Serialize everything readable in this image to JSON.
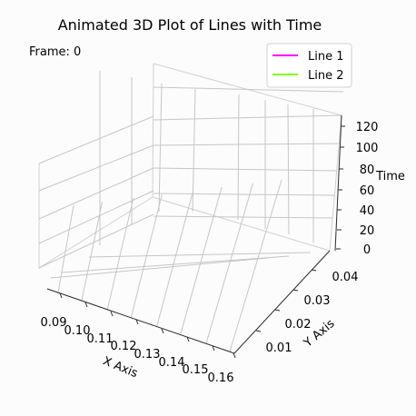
{
  "chart_data": {
    "type": "line",
    "title": "Animated 3D Plot of Lines with Time",
    "frame_text": "Frame: 0",
    "xlabel": "X Axis",
    "ylabel": "Y Axis",
    "zlabel": "Time",
    "xlim": [
      0.085,
      0.162
    ],
    "ylim": [
      0.0,
      0.045
    ],
    "zlim": [
      0,
      130
    ],
    "xticks": [
      "0.09",
      "0.10",
      "0.11",
      "0.12",
      "0.13",
      "0.14",
      "0.15",
      "0.16"
    ],
    "yticks": [
      "0.01",
      "0.02",
      "0.03",
      "0.04"
    ],
    "zticks": [
      "0",
      "20",
      "40",
      "60",
      "80",
      "100",
      "120"
    ],
    "legend_position": "top-right",
    "grid": true,
    "series": [
      {
        "name": "Line 1",
        "color": "#ff00ff",
        "x": [],
        "y": [],
        "z": []
      },
      {
        "name": "Line 2",
        "color": "#7fff00",
        "x": [],
        "y": [],
        "z": []
      }
    ]
  }
}
